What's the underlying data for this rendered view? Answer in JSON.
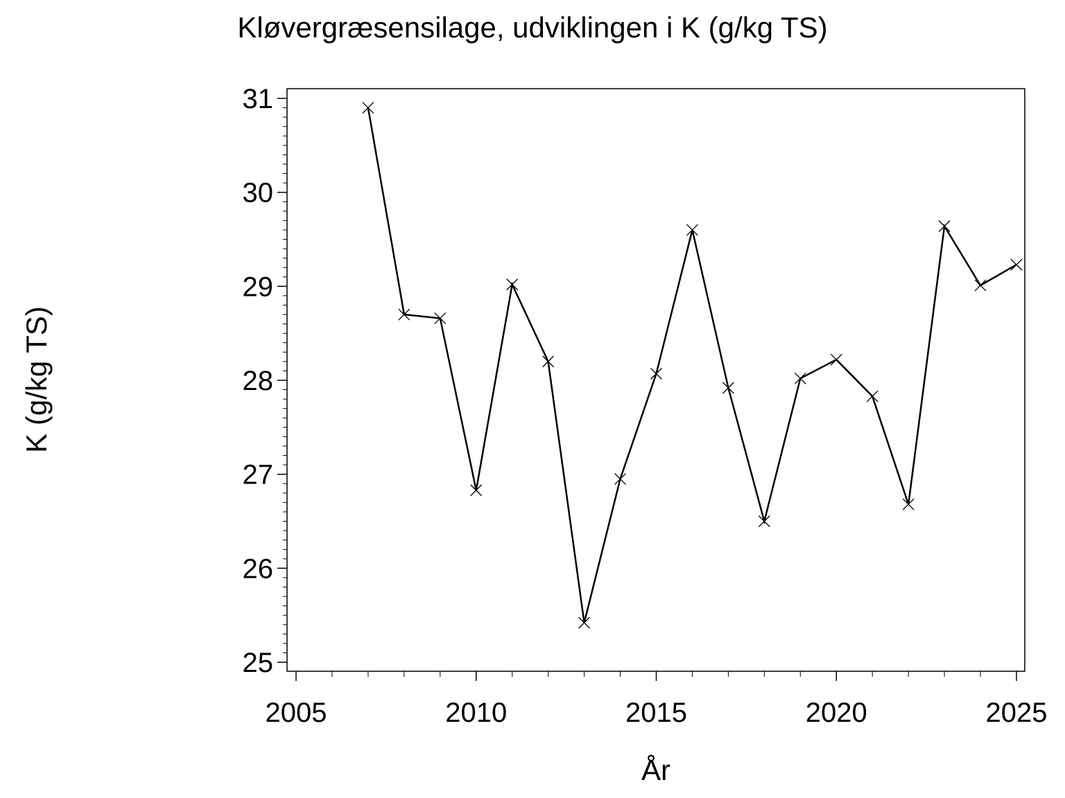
{
  "chart_data": {
    "type": "line",
    "title": "Kløvergræsensilage, udviklingen i K (g/kg TS)",
    "xlabel": "År",
    "ylabel": "K (g/kg TS)",
    "xlim": [
      2005,
      2025
    ],
    "ylim": [
      25,
      31
    ],
    "x_ticks": [
      2005,
      2010,
      2015,
      2020,
      2025
    ],
    "y_ticks": [
      25,
      26,
      27,
      28,
      29,
      30,
      31
    ],
    "grid": false,
    "legend": "none",
    "marker": "x",
    "line_color": "#000000",
    "x": [
      2007,
      2008,
      2009,
      2010,
      2011,
      2012,
      2013,
      2014,
      2015,
      2016,
      2017,
      2018,
      2019,
      2020,
      2021,
      2022,
      2023,
      2024,
      2025
    ],
    "y": [
      30.9,
      28.7,
      28.66,
      26.83,
      29.02,
      28.2,
      25.42,
      26.95,
      28.07,
      29.6,
      27.92,
      26.5,
      28.02,
      28.22,
      27.83,
      26.68,
      29.64,
      29.01,
      29.23
    ]
  }
}
